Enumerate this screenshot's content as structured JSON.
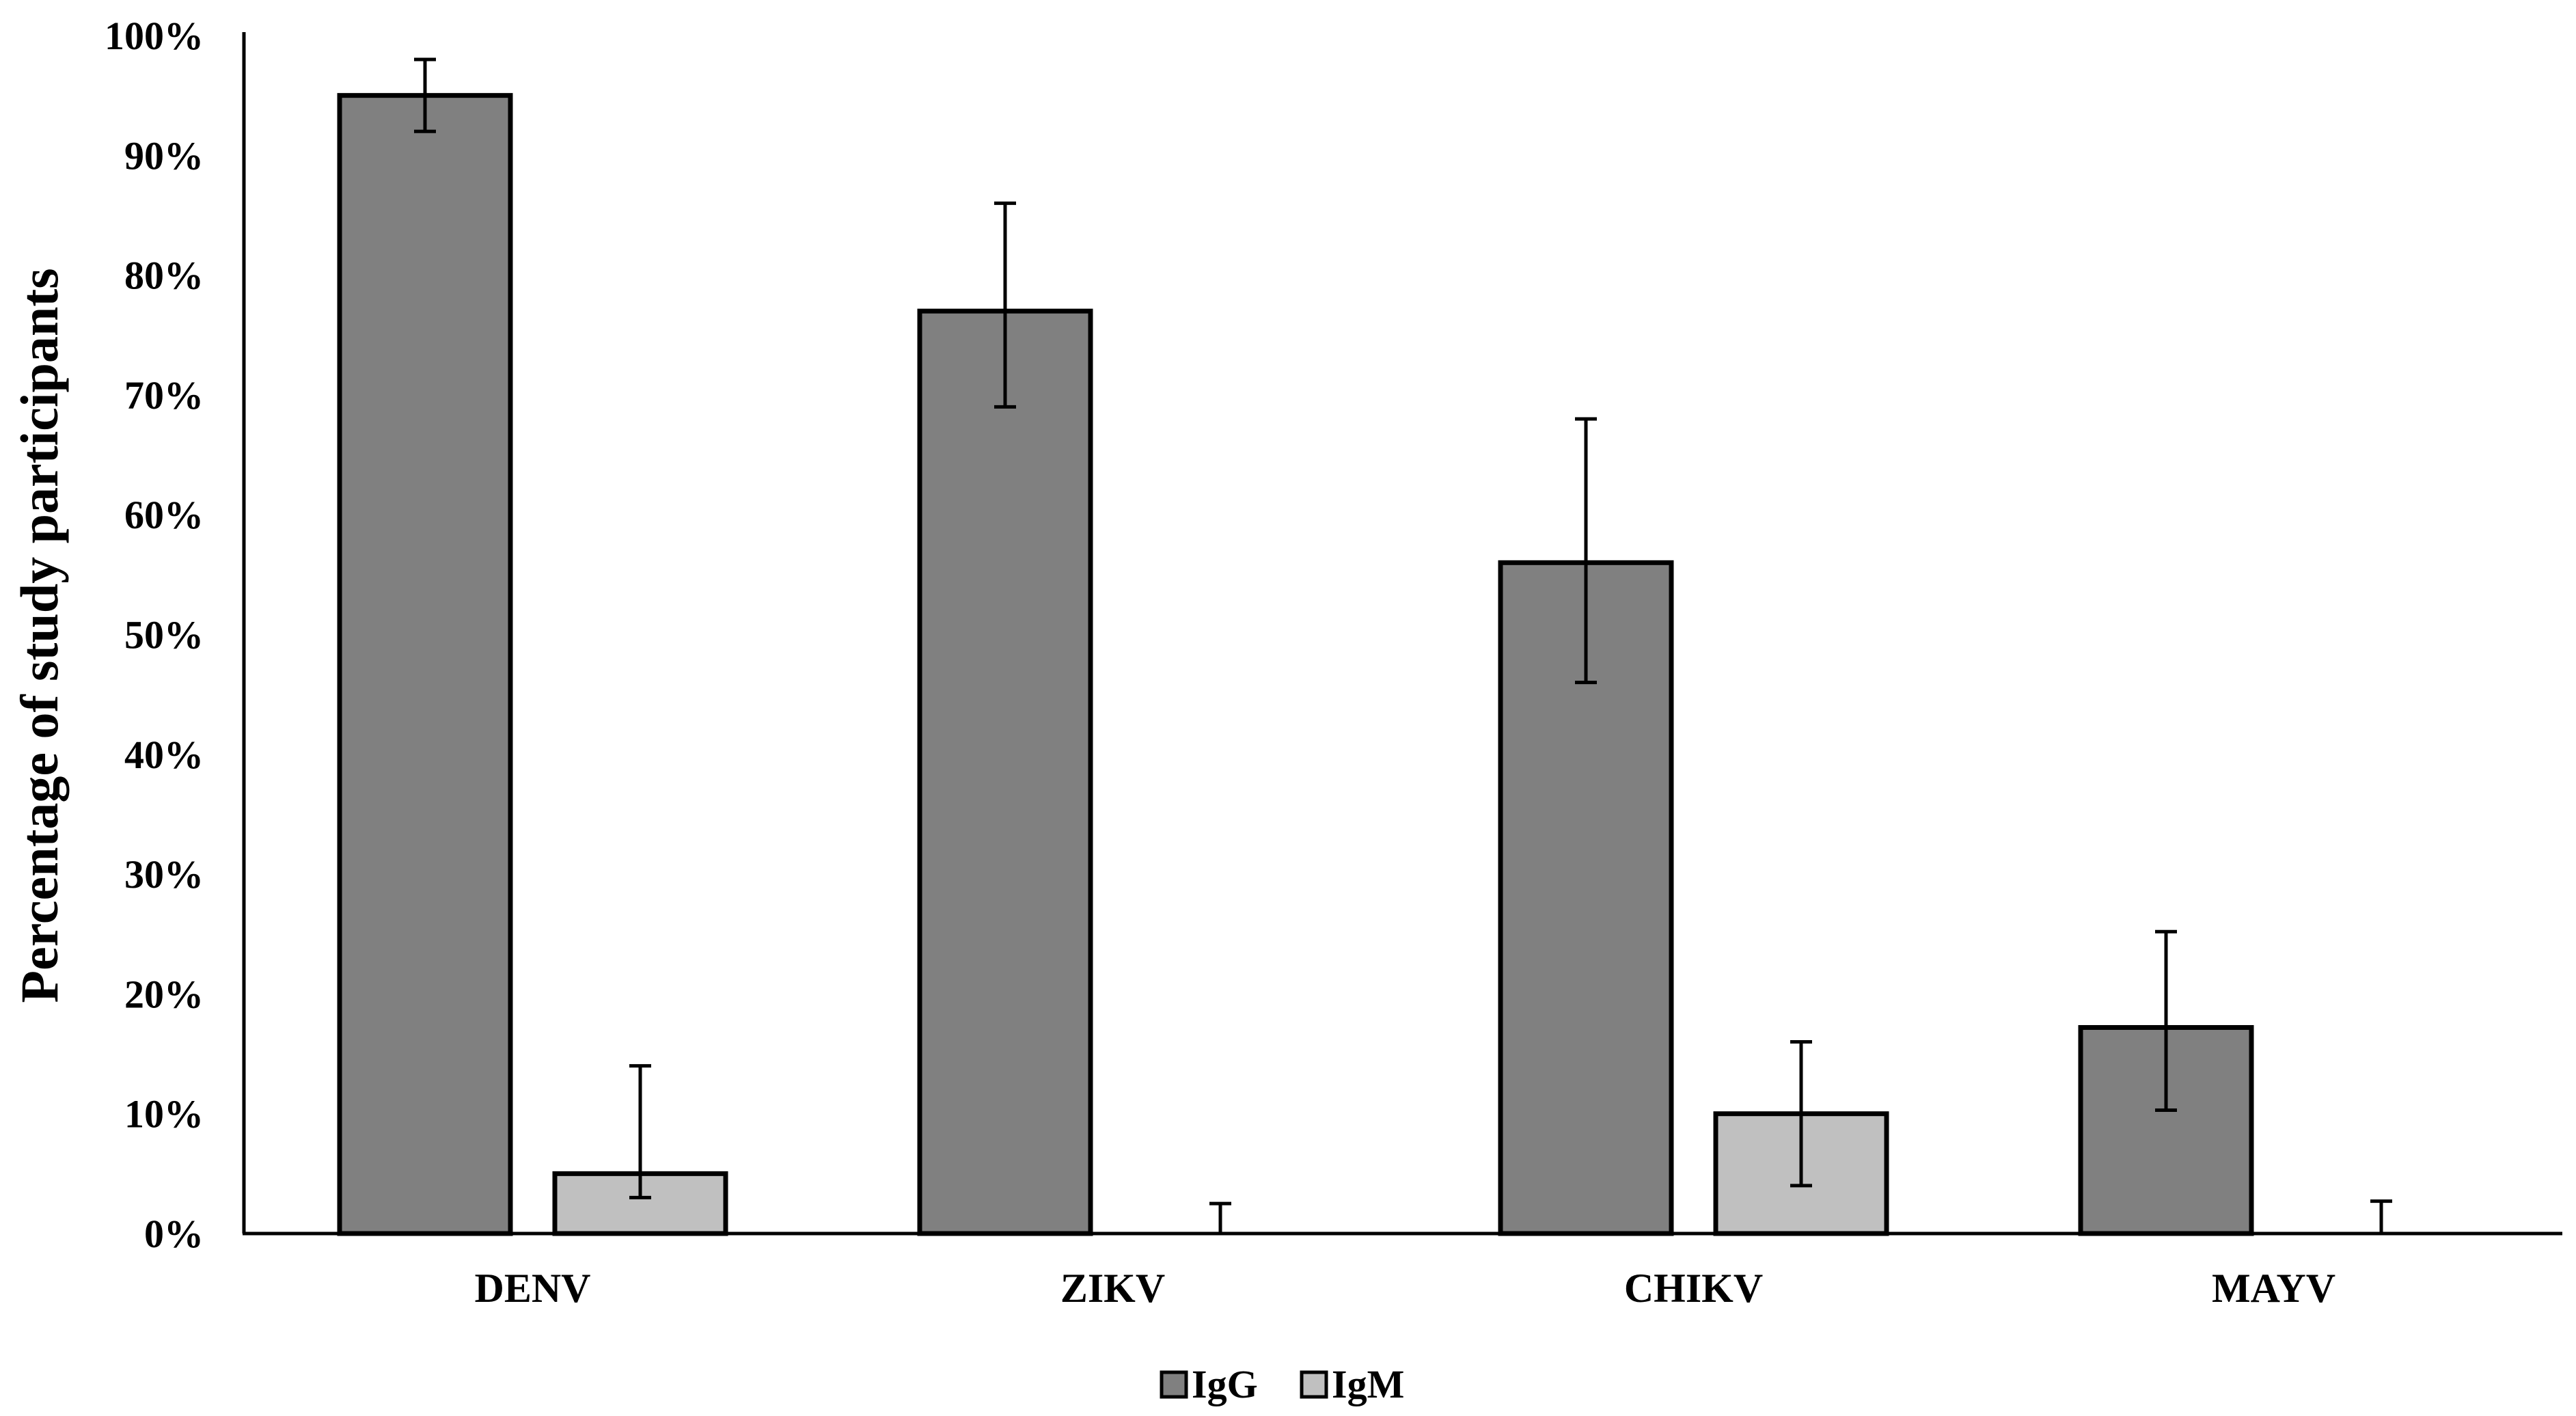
{
  "chart_data": {
    "type": "bar",
    "title": "",
    "xlabel": "",
    "ylabel": "Percentage of study participants",
    "ylim": [
      0,
      100
    ],
    "yticks": [
      "0%",
      "10%",
      "20%",
      "30%",
      "40%",
      "50%",
      "60%",
      "70%",
      "80%",
      "90%",
      "100%"
    ],
    "categories": [
      "DENV",
      "ZIKV",
      "CHIKV",
      "MAYV"
    ],
    "series": [
      {
        "name": "IgG",
        "color": "#808080",
        "values": [
          95,
          77,
          56,
          17.2
        ],
        "error_low": [
          92,
          69,
          46,
          10.3
        ],
        "error_high": [
          98,
          86,
          68,
          25.2
        ]
      },
      {
        "name": "IgM",
        "color": "#c0c0c0",
        "values": [
          5,
          0,
          10,
          0
        ],
        "error_low": [
          3,
          0,
          4,
          0
        ],
        "error_high": [
          14,
          2.5,
          16,
          2.7
        ]
      }
    ],
    "grid": false,
    "legend": "bottom-center"
  }
}
